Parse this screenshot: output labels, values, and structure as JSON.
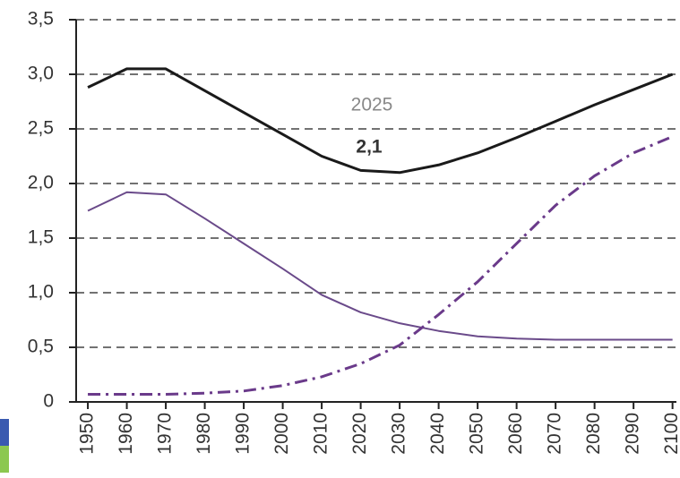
{
  "chart_data": {
    "type": "line",
    "x": [
      1950,
      1960,
      1970,
      1980,
      1990,
      2000,
      2010,
      2020,
      2030,
      2040,
      2050,
      2060,
      2070,
      2080,
      2090,
      2100
    ],
    "xlim": [
      1947,
      2101
    ],
    "xticks": [
      1950,
      1960,
      1970,
      1980,
      1990,
      2000,
      2010,
      2020,
      2030,
      2040,
      2050,
      2060,
      2070,
      2080,
      2090,
      2100
    ],
    "ylim": [
      0,
      3.5
    ],
    "yticks": [
      0,
      {
        "value": 0.5,
        "label": "0,5"
      },
      {
        "value": 1,
        "label": "1,0"
      },
      {
        "value": 1.5,
        "label": "1,5"
      },
      {
        "value": 2,
        "label": "2,0"
      },
      {
        "value": 2.5,
        "label": "2,5"
      },
      {
        "value": 3,
        "label": "3,0"
      },
      {
        "value": 3.5,
        "label": "3,5"
      }
    ],
    "grid": true,
    "series": [
      {
        "color": "#1a1a1a",
        "style": "solid",
        "values": [
          2.88,
          3.05,
          3.05,
          2.85,
          2.65,
          2.45,
          2.25,
          2.12,
          2.1,
          2.17,
          2.28,
          2.42,
          2.57,
          2.72,
          2.86,
          3.0
        ]
      },
      {
        "color": "#6a4a8a",
        "style": "solid",
        "values": [
          1.75,
          1.92,
          1.9,
          1.68,
          1.45,
          1.22,
          0.98,
          0.82,
          0.72,
          0.65,
          0.6,
          0.58,
          0.57,
          0.57,
          0.57,
          0.57
        ]
      },
      {
        "color": "#6a3a8a",
        "style": "dashdot",
        "values": [
          0.07,
          0.07,
          0.07,
          0.08,
          0.1,
          0.15,
          0.23,
          0.35,
          0.52,
          0.8,
          1.1,
          1.45,
          1.8,
          2.07,
          2.28,
          2.43
        ]
      }
    ],
    "annotations": [
      "2025",
      "2,1"
    ]
  }
}
